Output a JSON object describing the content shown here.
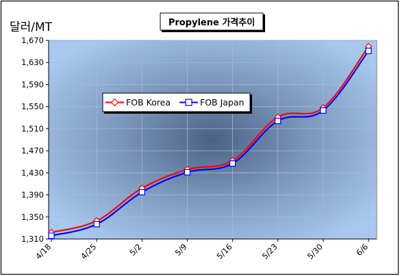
{
  "chart_data": {
    "type": "line",
    "title": "Propylene 가격추이",
    "ylabel": "달러/MT",
    "xlabel": "",
    "categories": [
      "4/18",
      "4/25",
      "5/2",
      "5/9",
      "5/16",
      "5/23",
      "5/30",
      "6/6"
    ],
    "ylim": [
      1310,
      1670
    ],
    "yticks": [
      1310,
      1350,
      1390,
      1430,
      1470,
      1510,
      1550,
      1590,
      1630,
      1670
    ],
    "yticks_text": [
      "1,310",
      "1,350",
      "1,390",
      "1,430",
      "1,470",
      "1,510",
      "1,550",
      "1,590",
      "1,630",
      "1,670"
    ],
    "grid": true,
    "legend_position": "center-left",
    "series": [
      {
        "name": "FOB Korea",
        "color": "#ff0000",
        "marker": "diamond",
        "values": [
          1322,
          1343,
          1402,
          1436,
          1452,
          1531,
          1548,
          1659
        ]
      },
      {
        "name": "FOB Japan",
        "color": "#0000ff",
        "marker": "square",
        "values": [
          1316,
          1337,
          1395,
          1431,
          1447,
          1524,
          1543,
          1651
        ]
      }
    ]
  }
}
